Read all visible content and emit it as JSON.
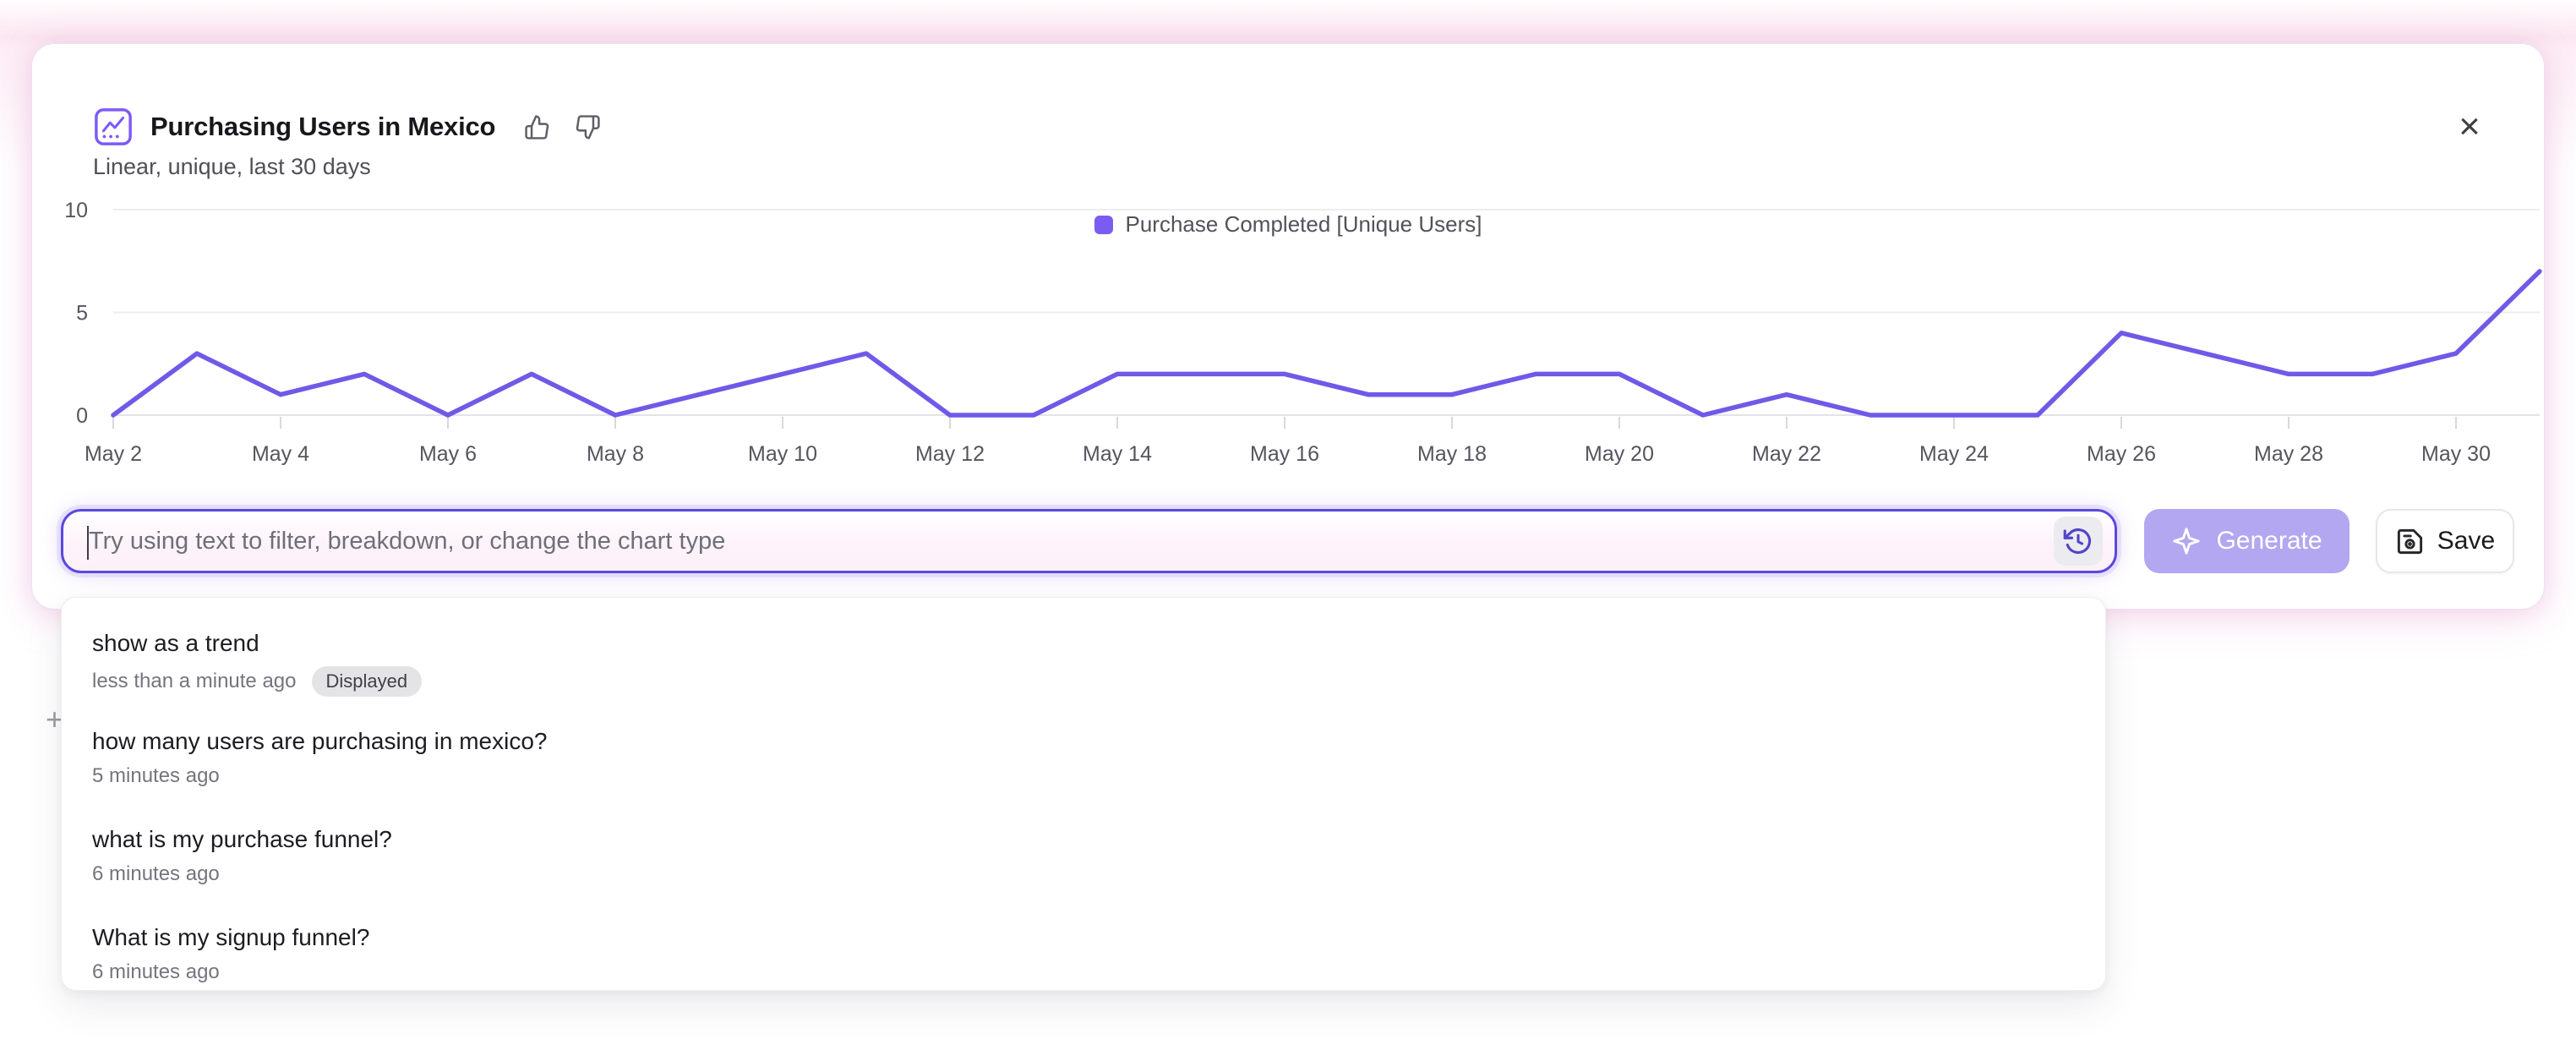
{
  "header": {
    "title": "Purchasing Users in Mexico",
    "subtitle": "Linear, unique, last 30 days"
  },
  "legend": {
    "label": "Purchase Completed [Unique Users]",
    "swatch_color": "#7a5cf2"
  },
  "chart_data": {
    "type": "line",
    "title": "Purchasing Users in Mexico",
    "x": [
      "May 2",
      "May 3",
      "May 4",
      "May 5",
      "May 6",
      "May 7",
      "May 8",
      "May 9",
      "May 10",
      "May 11",
      "May 12",
      "May 13",
      "May 14",
      "May 15",
      "May 16",
      "May 17",
      "May 18",
      "May 19",
      "May 20",
      "May 21",
      "May 22",
      "May 23",
      "May 24",
      "May 25",
      "May 26",
      "May 27",
      "May 28",
      "May 29",
      "May 30",
      "May 31"
    ],
    "series": [
      {
        "name": "Purchase Completed [Unique Users]",
        "color": "#6f5ae8",
        "values": [
          0,
          3,
          1,
          2,
          0,
          2,
          0,
          1,
          2,
          3,
          0,
          0,
          2,
          2,
          2,
          1,
          1,
          2,
          2,
          0,
          1,
          0,
          0,
          0,
          4,
          3,
          2,
          2,
          3,
          7
        ]
      }
    ],
    "x_tick_every": 2,
    "ylim": [
      0,
      10
    ],
    "yticks": [
      0,
      5,
      10
    ],
    "grid": "horizontal",
    "legend_position": "top-center",
    "line_color": "#6f5ae8",
    "grid_color": "#ededf0",
    "axis_color": "#e3e3e8",
    "tick_color": "#d8d8dd"
  },
  "prompt_bar": {
    "placeholder": "Try using text to filter, breakdown, or change the chart type",
    "value": "",
    "generate_label": "Generate",
    "save_label": "Save",
    "accent_border": "#5a49dd"
  },
  "history_dropdown": {
    "items": [
      {
        "title": "show as a trend",
        "time": "less than a minute ago",
        "badge": "Displayed"
      },
      {
        "title": "how many users are purchasing in mexico?",
        "time": "5 minutes ago",
        "badge": ""
      },
      {
        "title": "what is my purchase funnel?",
        "time": "6 minutes ago",
        "badge": ""
      },
      {
        "title": "What is my signup funnel?",
        "time": "6 minutes ago",
        "badge": ""
      }
    ]
  },
  "misc": {
    "close": "×",
    "plus": "+"
  }
}
